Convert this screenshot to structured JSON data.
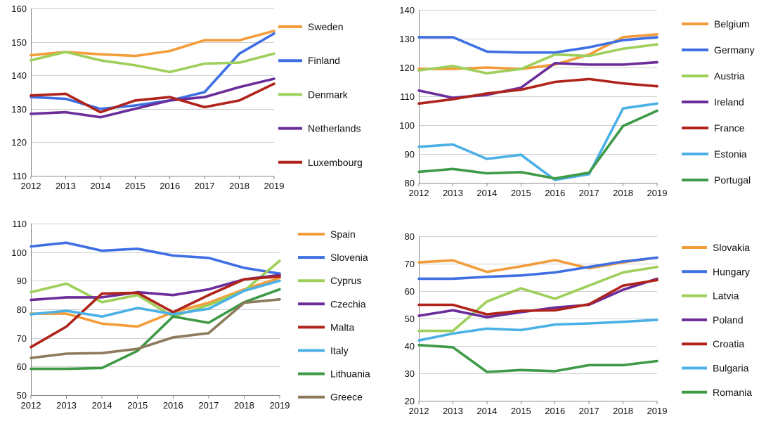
{
  "chart_data": [
    {
      "type": "line",
      "x": [
        2012,
        2013,
        2014,
        2015,
        2016,
        2017,
        2018,
        2019
      ],
      "ylim": [
        110,
        160
      ],
      "yticks": [
        110,
        120,
        130,
        140,
        150,
        160
      ],
      "grid": true,
      "legend_position": "right",
      "series": [
        {
          "name": "Sweden",
          "color": "#f39c3a",
          "values": [
            146,
            147,
            146.3,
            145.8,
            147.3,
            150.5,
            150.5,
            153.3
          ]
        },
        {
          "name": "Finland",
          "color": "#3e6fe3",
          "values": [
            133.5,
            133,
            130,
            131,
            132.5,
            135,
            146.5,
            152.5
          ]
        },
        {
          "name": "Denmark",
          "color": "#9ecf5a",
          "values": [
            144.5,
            147,
            144.5,
            143,
            141,
            143.5,
            143.8,
            146.5
          ]
        },
        {
          "name": "Netherlands",
          "color": "#6b2d9a",
          "values": [
            128.5,
            129,
            127.5,
            130,
            132.5,
            133.5,
            136.5,
            139
          ]
        },
        {
          "name": "Luxembourg",
          "color": "#b0231b",
          "values": [
            134,
            134.5,
            129,
            132.5,
            133.5,
            130.5,
            132.5,
            137.5
          ]
        }
      ]
    },
    {
      "type": "line",
      "x": [
        2012,
        2013,
        2014,
        2015,
        2016,
        2017,
        2018,
        2019
      ],
      "ylim": [
        80,
        140
      ],
      "yticks": [
        80,
        90,
        100,
        110,
        120,
        130,
        140
      ],
      "grid": true,
      "legend_position": "right",
      "series": [
        {
          "name": "Belgium",
          "color": "#f39c3a",
          "values": [
            119.5,
            119.5,
            120,
            119.5,
            121,
            124.5,
            130.5,
            131.5
          ]
        },
        {
          "name": "Germany",
          "color": "#3e6fe3",
          "values": [
            130.5,
            130.5,
            125.5,
            125.2,
            125.2,
            127,
            129.5,
            130.5
          ]
        },
        {
          "name": "Austria",
          "color": "#9ecf5a",
          "values": [
            119,
            120.5,
            118,
            119.5,
            124.5,
            124,
            126.5,
            128
          ]
        },
        {
          "name": "Ireland",
          "color": "#6b2d9a",
          "values": [
            112,
            109.5,
            110.5,
            113,
            121.5,
            121,
            121,
            121.8
          ]
        },
        {
          "name": "France",
          "color": "#b0231b",
          "values": [
            107.5,
            109,
            111,
            112.3,
            115,
            116,
            114.5,
            113.5
          ]
        },
        {
          "name": "Estonia",
          "color": "#4ab0e6",
          "values": [
            92.5,
            93.3,
            88.3,
            89.7,
            81,
            83,
            105.8,
            107.5
          ]
        },
        {
          "name": "Portugal",
          "color": "#3e9a46",
          "values": [
            83.8,
            84.8,
            83.3,
            83.7,
            81.5,
            83.5,
            99.7,
            105
          ]
        }
      ]
    },
    {
      "type": "line",
      "x": [
        2012,
        2013,
        2014,
        2015,
        2016,
        2017,
        2018,
        2019
      ],
      "ylim": [
        50,
        110
      ],
      "yticks": [
        50,
        60,
        70,
        80,
        90,
        100,
        110
      ],
      "grid": true,
      "legend_position": "right",
      "series": [
        {
          "name": "Spain",
          "color": "#f39c3a",
          "values": [
            78.5,
            78.5,
            75,
            74,
            79,
            82.3,
            87,
            91
          ]
        },
        {
          "name": "Slovenia",
          "color": "#3e6fe3",
          "values": [
            102,
            103.3,
            100.5,
            101.2,
            98.8,
            98,
            94.5,
            92.5
          ]
        },
        {
          "name": "Cyprus",
          "color": "#9ecf5a",
          "values": [
            86,
            89,
            82.5,
            85,
            77.5,
            81.5,
            86.5,
            97
          ]
        },
        {
          "name": "Czechia",
          "color": "#6b2d9a",
          "values": [
            83.3,
            84.2,
            84.2,
            86,
            85,
            87,
            90.5,
            92
          ]
        },
        {
          "name": "Malta",
          "color": "#b0231b",
          "values": [
            66.8,
            74,
            85.5,
            85.8,
            79,
            85,
            90.5,
            91.5
          ]
        },
        {
          "name": "Italy",
          "color": "#4ab0e6",
          "values": [
            78.3,
            79.5,
            77.5,
            80.5,
            78.3,
            80.2,
            86.5,
            90
          ]
        },
        {
          "name": "Lithuania",
          "color": "#3e9a46",
          "values": [
            59.2,
            59.2,
            59.5,
            65.5,
            77.5,
            75.3,
            82.5,
            87
          ]
        },
        {
          "name": "Greece",
          "color": "#8c7a5b",
          "values": [
            63,
            64.5,
            64.7,
            66.2,
            70.2,
            71.7,
            82.3,
            83.5
          ]
        }
      ]
    },
    {
      "type": "line",
      "x": [
        2012,
        2013,
        2014,
        2015,
        2016,
        2017,
        2018,
        2019
      ],
      "ylim": [
        20,
        80
      ],
      "yticks": [
        20,
        30,
        40,
        50,
        60,
        70,
        80
      ],
      "grid": true,
      "legend_position": "right",
      "series": [
        {
          "name": "Slovakia",
          "color": "#f39c3a",
          "values": [
            70.5,
            71.2,
            67,
            69,
            71.3,
            68.3,
            70.5,
            72.2
          ]
        },
        {
          "name": "Hungary",
          "color": "#3e6fe3",
          "values": [
            64.5,
            64.5,
            65.2,
            65.7,
            66.8,
            68.8,
            70.8,
            72.2
          ]
        },
        {
          "name": "Latvia",
          "color": "#9ecf5a",
          "values": [
            45.5,
            45.5,
            56.2,
            61,
            57.2,
            62,
            66.8,
            68.8
          ]
        },
        {
          "name": "Poland",
          "color": "#6b2d9a",
          "values": [
            51,
            53,
            50.5,
            52.3,
            54,
            55,
            60.5,
            64.5
          ]
        },
        {
          "name": "Croatia",
          "color": "#b0231b",
          "values": [
            55,
            55,
            51.5,
            52.8,
            53,
            55.2,
            62,
            64
          ]
        },
        {
          "name": "Bulgaria",
          "color": "#4ab0e6",
          "values": [
            42,
            44.5,
            46.3,
            45.8,
            47.8,
            48.2,
            48.8,
            49.5
          ]
        },
        {
          "name": "Romania",
          "color": "#3e9a46",
          "values": [
            40.3,
            39.5,
            30.5,
            31.2,
            30.8,
            33,
            33,
            34.5
          ]
        }
      ]
    }
  ]
}
